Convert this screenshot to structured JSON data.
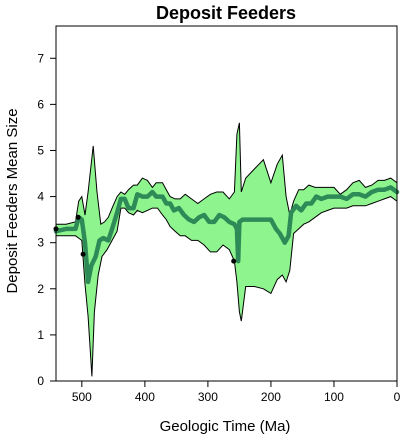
{
  "chart_data": {
    "type": "line",
    "title": "Deposit Feeders",
    "xlabel": "Geologic Time (Ma)",
    "ylabel": "Deposit Feeders Mean Size",
    "xlim": [
      541,
      0
    ],
    "ylim": [
      0,
      7.7
    ],
    "x_ticks": [
      500,
      400,
      300,
      200,
      100,
      0
    ],
    "y_ticks": [
      0,
      1,
      2,
      3,
      4,
      5,
      6,
      7
    ],
    "grid": false,
    "colors": {
      "mean_line": "#2e8b57",
      "band_fill": "#8ef58e",
      "band_edge": "#000000",
      "points": "#000000"
    },
    "series": [
      {
        "role": "mean",
        "x": [
          541,
          525,
          510,
          505,
          500,
          495,
          490,
          485,
          478,
          472,
          466,
          458,
          452,
          444,
          438,
          432,
          426,
          418,
          412,
          404,
          396,
          388,
          382,
          372,
          366,
          360,
          354,
          346,
          338,
          330,
          322,
          314,
          306,
          298,
          290,
          282,
          274,
          266,
          258,
          254,
          252,
          250,
          245,
          230,
          215,
          200,
          192,
          186,
          178,
          172,
          168,
          160,
          152,
          144,
          136,
          128,
          120,
          110,
          100,
          90,
          80,
          70,
          60,
          50,
          40,
          30,
          20,
          10,
          5,
          0
        ],
        "y": [
          3.25,
          3.3,
          3.3,
          3.55,
          3.5,
          3.0,
          2.15,
          2.5,
          2.7,
          3.05,
          3.1,
          3.05,
          3.3,
          3.65,
          3.95,
          3.95,
          3.75,
          3.75,
          4.05,
          4.0,
          4.0,
          4.1,
          4.0,
          4.0,
          3.85,
          3.85,
          3.7,
          3.75,
          3.6,
          3.5,
          3.45,
          3.55,
          3.6,
          3.45,
          3.45,
          3.6,
          3.55,
          3.45,
          3.4,
          3.3,
          2.6,
          3.45,
          3.5,
          3.5,
          3.5,
          3.5,
          3.3,
          3.2,
          3.0,
          3.15,
          3.65,
          3.8,
          3.7,
          3.85,
          3.85,
          4.0,
          3.95,
          4.0,
          4.0,
          4.0,
          3.95,
          4.05,
          4.05,
          4.0,
          4.1,
          4.15,
          4.15,
          4.2,
          4.15,
          4.1
        ]
      },
      {
        "role": "upper",
        "x": [
          541,
          525,
          510,
          505,
          500,
          495,
          490,
          482,
          476,
          470,
          464,
          458,
          452,
          444,
          438,
          432,
          426,
          418,
          412,
          404,
          396,
          388,
          382,
          372,
          366,
          360,
          352,
          344,
          336,
          326,
          316,
          306,
          296,
          286,
          276,
          266,
          258,
          254,
          250,
          247,
          240,
          226,
          212,
          200,
          190,
          182,
          176,
          170,
          164,
          156,
          148,
          140,
          130,
          120,
          110,
          100,
          90,
          80,
          70,
          60,
          50,
          40,
          30,
          20,
          10,
          5,
          0
        ],
        "y": [
          3.4,
          3.4,
          3.45,
          3.9,
          4.0,
          3.6,
          4.1,
          5.1,
          4.1,
          3.4,
          3.45,
          3.55,
          3.75,
          4.0,
          4.1,
          4.05,
          4.15,
          4.25,
          4.25,
          4.4,
          4.35,
          4.2,
          4.3,
          4.3,
          4.15,
          4.0,
          3.95,
          3.95,
          4.05,
          3.95,
          3.85,
          3.95,
          4.05,
          4.1,
          4.1,
          3.95,
          4.1,
          5.35,
          5.6,
          4.1,
          4.4,
          4.6,
          4.8,
          4.3,
          4.7,
          4.9,
          4.0,
          3.6,
          3.9,
          4.15,
          4.15,
          4.25,
          4.2,
          4.2,
          4.2,
          4.2,
          4.05,
          4.15,
          4.3,
          4.35,
          4.2,
          4.25,
          4.35,
          4.35,
          4.4,
          4.35,
          4.3
        ]
      },
      {
        "role": "lower",
        "x": [
          541,
          525,
          510,
          505,
          500,
          495,
          490,
          484,
          480,
          474,
          468,
          460,
          452,
          444,
          438,
          432,
          426,
          418,
          412,
          404,
          396,
          388,
          380,
          372,
          366,
          360,
          352,
          344,
          336,
          326,
          316,
          306,
          296,
          286,
          276,
          266,
          258,
          254,
          250,
          247,
          240,
          226,
          212,
          200,
          190,
          182,
          176,
          170,
          164,
          156,
          148,
          140,
          130,
          120,
          110,
          100,
          90,
          80,
          70,
          60,
          50,
          40,
          30,
          20,
          10,
          5,
          0
        ],
        "y": [
          3.15,
          3.15,
          3.15,
          3.1,
          3.05,
          2.1,
          1.4,
          0.1,
          1.5,
          2.3,
          2.7,
          2.85,
          3.05,
          3.25,
          3.75,
          3.75,
          3.65,
          3.6,
          3.7,
          3.65,
          3.7,
          3.75,
          3.75,
          3.6,
          3.5,
          3.35,
          3.25,
          3.15,
          3.15,
          3.05,
          3.05,
          2.95,
          2.8,
          2.8,
          2.95,
          2.85,
          2.6,
          2.15,
          1.5,
          1.3,
          2.05,
          2.05,
          2.0,
          1.9,
          2.2,
          2.3,
          2.15,
          2.4,
          3.2,
          3.3,
          3.4,
          3.45,
          3.55,
          3.65,
          3.7,
          3.75,
          3.75,
          3.75,
          3.8,
          3.8,
          3.8,
          3.85,
          3.9,
          3.95,
          4.0,
          3.95,
          3.9
        ]
      },
      {
        "role": "points",
        "x": [
          541,
          506,
          498,
          259
        ],
        "y": [
          3.3,
          3.55,
          2.75,
          2.6
        ]
      }
    ]
  }
}
